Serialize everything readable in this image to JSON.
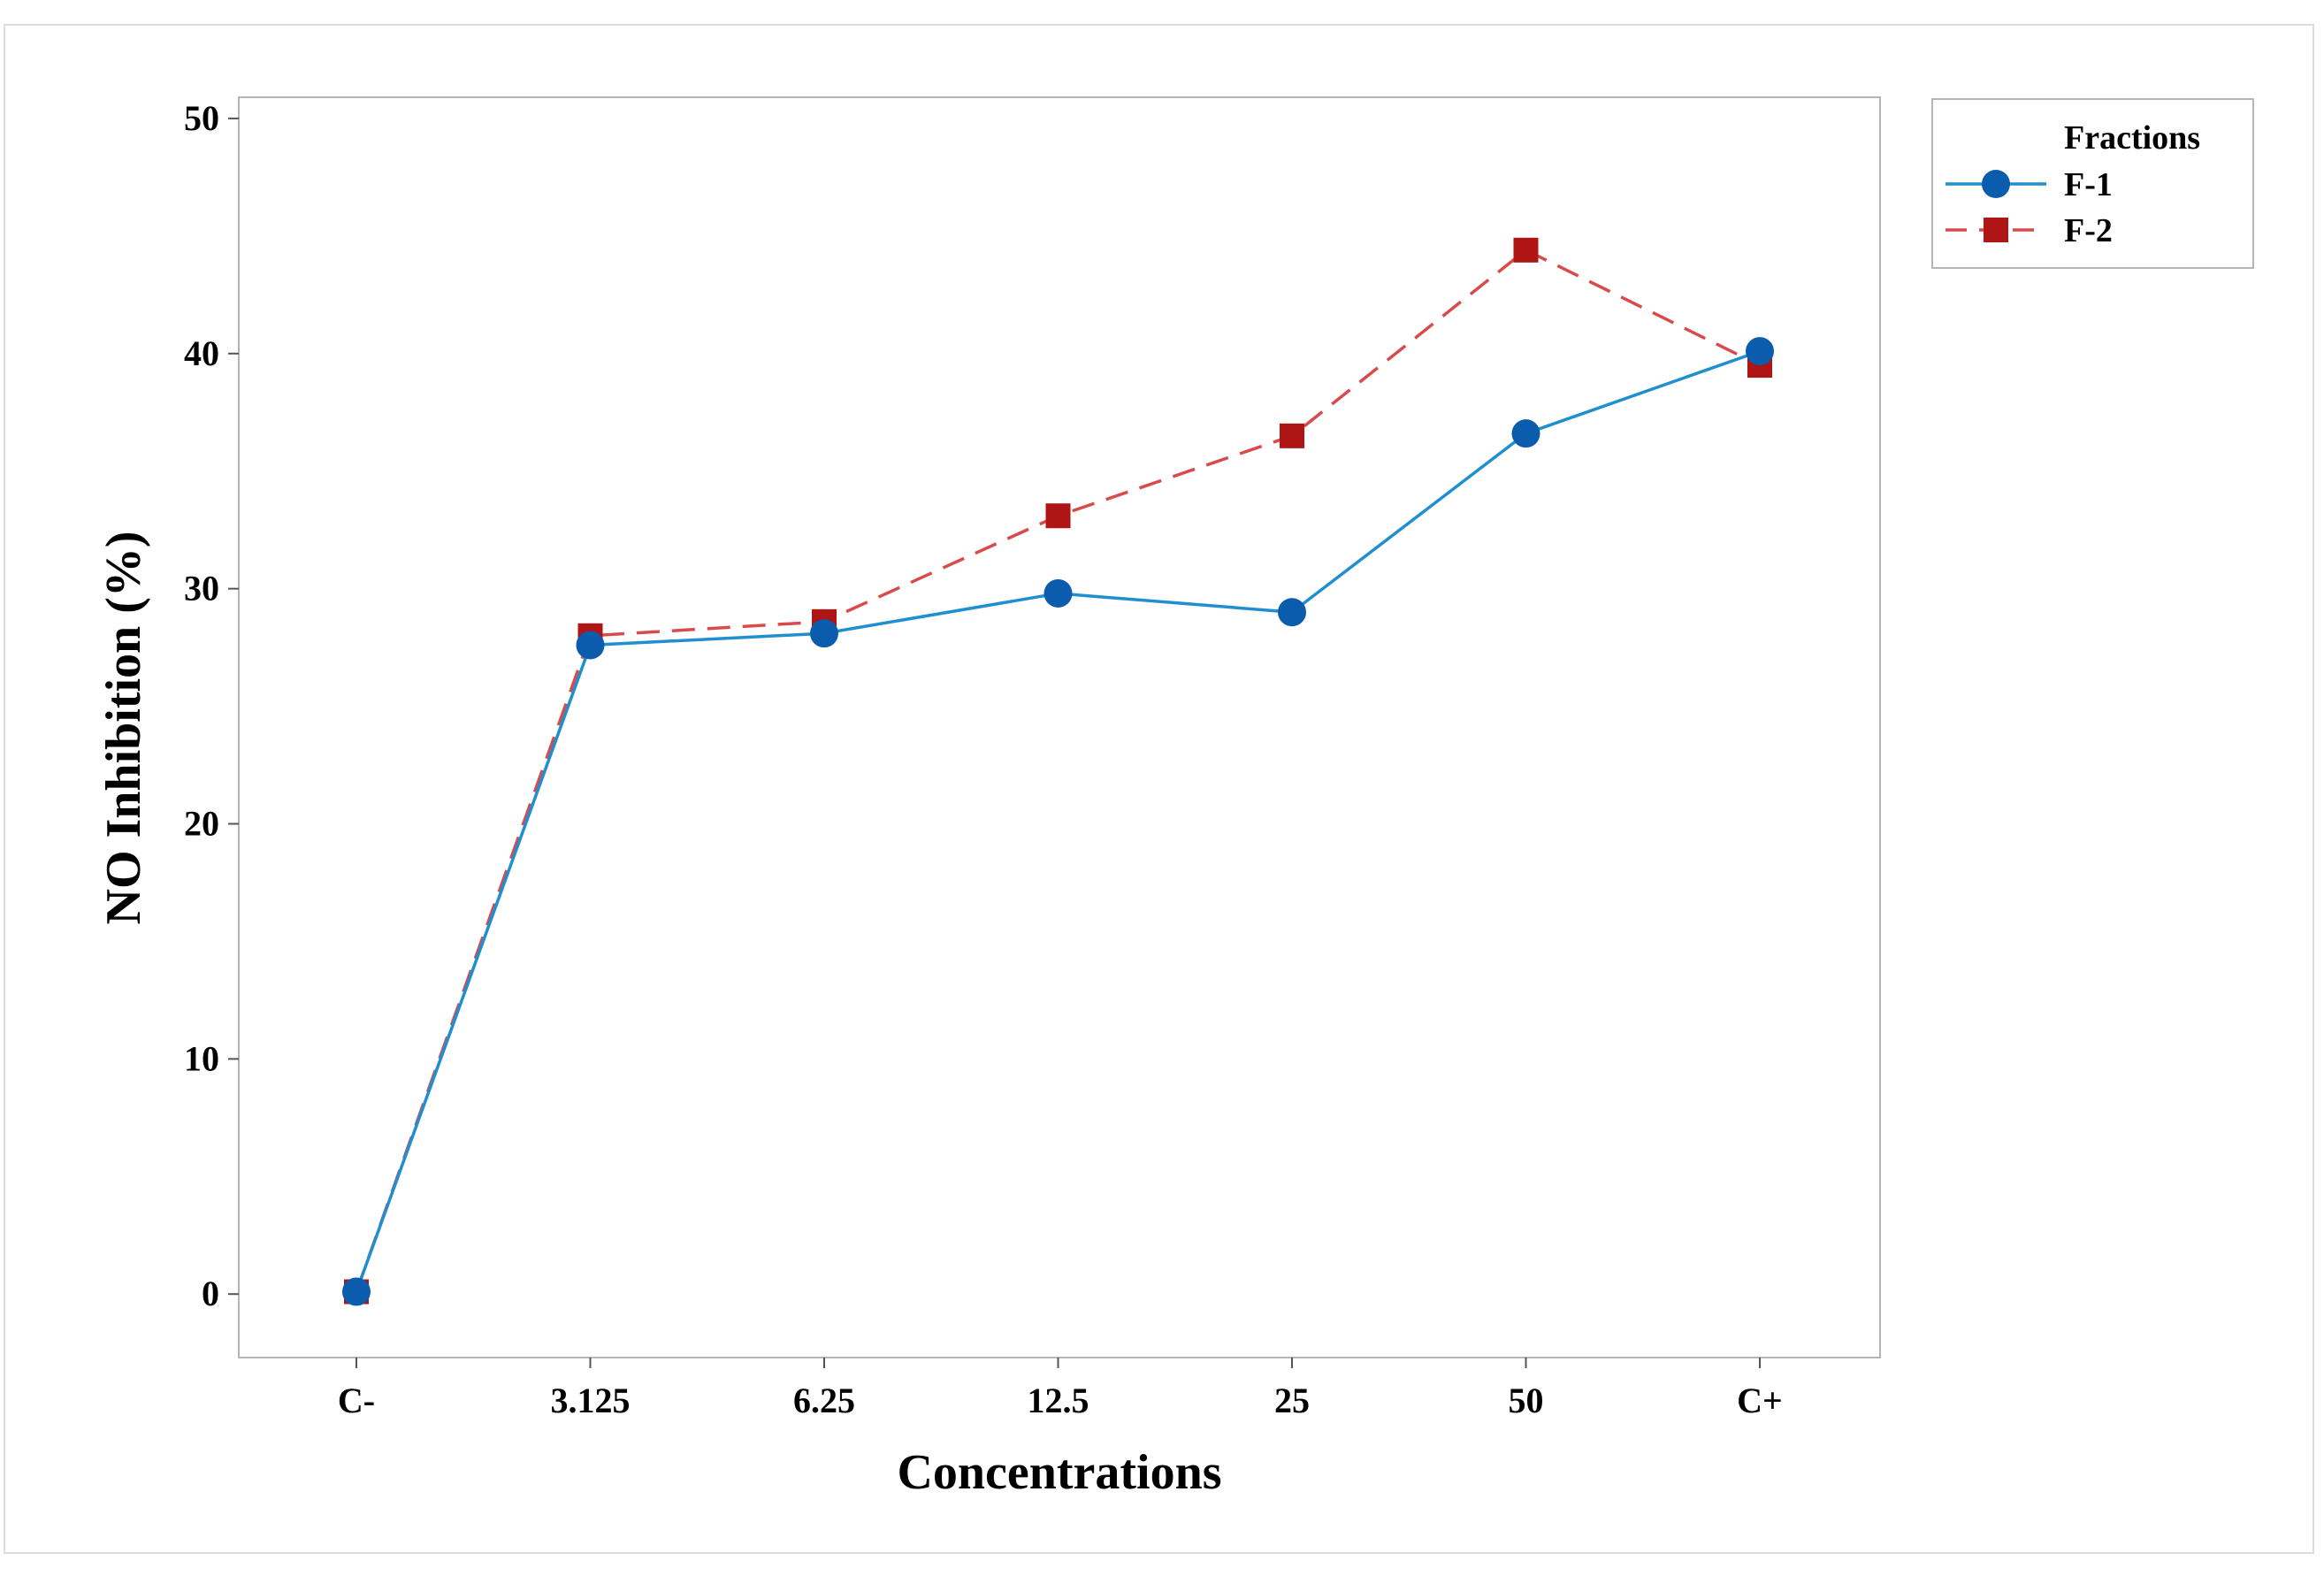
{
  "chart_data": {
    "type": "line",
    "title": "",
    "xlabel": "Concentrations",
    "ylabel": "NO Inhibition (%)",
    "categories": [
      "C-",
      "3.125",
      "6.25",
      "12.5",
      "25",
      "50",
      "C+"
    ],
    "ylim": [
      -2.7,
      50.9
    ],
    "yticks": [
      0,
      10,
      20,
      30,
      40,
      50
    ],
    "grid": false,
    "legend": {
      "title": "Fractions",
      "position": "outside-top-right"
    },
    "series": [
      {
        "name": "F-1",
        "color": "#0b5cad",
        "line_color": "#1f8fd0",
        "marker": "circle",
        "line_style": "solid",
        "values": [
          0.1,
          27.6,
          28.1,
          29.8,
          29.0,
          36.6,
          40.1
        ]
      },
      {
        "name": "F-2",
        "color": "#b01515",
        "line_color": "#d94b4b",
        "marker": "square",
        "line_style": "dashed",
        "values": [
          0.1,
          28.0,
          28.6,
          33.1,
          36.5,
          44.4,
          39.5
        ]
      }
    ]
  }
}
